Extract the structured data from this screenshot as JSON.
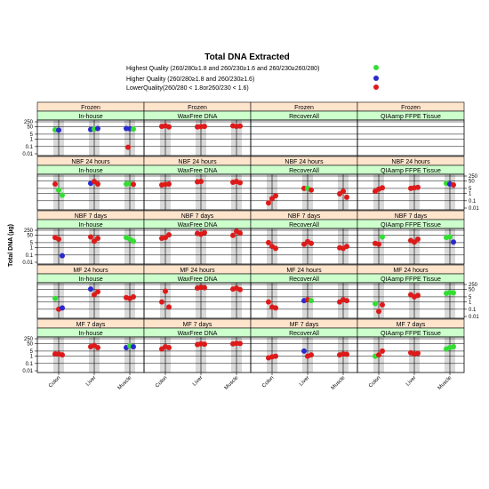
{
  "chart_data": {
    "type": "scatter",
    "title": "Total DNA Extracted",
    "ylabel": "Total DNA (µg)",
    "y_scale": "log",
    "ylim": [
      0.01,
      250
    ],
    "y_ticks": [
      "250",
      "50",
      "5",
      "1",
      "0.1",
      "0.01"
    ],
    "categories": [
      "Colon",
      "Liver",
      "Muscle"
    ],
    "conditions": [
      "Frozen",
      "NBF 24 hours",
      "NBF 7 days",
      "MF 24 hours",
      "MF 7 days"
    ],
    "methods": [
      "In-house",
      "WaxFree DNA",
      "RecoverAll",
      "QIAamp FFPE Tissue"
    ],
    "legend": [
      {
        "label": "Highest Quality (260/280≥1.8 and 260/230≥1.6 and 260/230≥260/280)",
        "color": "#33dd33"
      },
      {
        "label": "Higher Quality (260/280≥1.8 and 260/230≥1.6)",
        "color": "#2a2acc"
      },
      {
        "label": "LowerQuality(260/280   < 1.8or260/230   < 1.6)",
        "color": "#dd1a1a"
      }
    ],
    "colors": {
      "highest": "#33dd33",
      "higher": "#2a2acc",
      "lower": "#dd1a1a",
      "strip_row": "#ffe4cc",
      "strip_col": "#ccffcc",
      "band": "#d9d9d9"
    },
    "panels": [
      {
        "row": 0,
        "col": 0,
        "points": [
          [
            0,
            20,
            "highest"
          ],
          [
            0,
            18,
            "higher"
          ],
          [
            1,
            22,
            "higher"
          ],
          [
            1,
            25,
            "highest"
          ],
          [
            1,
            30,
            "higher"
          ],
          [
            2,
            30,
            "higher"
          ],
          [
            2,
            28,
            "higher"
          ],
          [
            2,
            25,
            "highest"
          ],
          [
            2,
            0.08,
            "lower"
          ]
        ]
      },
      {
        "row": 0,
        "col": 1,
        "points": [
          [
            0,
            60,
            "lower"
          ],
          [
            0,
            70,
            "lower"
          ],
          [
            0,
            50,
            "lower"
          ],
          [
            1,
            50,
            "lower"
          ],
          [
            1,
            55,
            "lower"
          ],
          [
            1,
            60,
            "lower"
          ],
          [
            2,
            70,
            "lower"
          ],
          [
            2,
            60,
            "lower"
          ],
          [
            2,
            65,
            "lower"
          ]
        ]
      },
      {
        "row": 0,
        "col": 2,
        "points": []
      },
      {
        "row": 0,
        "col": 3,
        "points": []
      },
      {
        "row": 1,
        "col": 0,
        "points": [
          [
            0,
            20,
            "lower"
          ],
          [
            0,
            3,
            "highest"
          ],
          [
            0,
            0.6,
            "highest"
          ],
          [
            1,
            25,
            "higher"
          ],
          [
            1,
            45,
            "lower"
          ],
          [
            1,
            20,
            "lower"
          ],
          [
            2,
            20,
            "highest"
          ],
          [
            2,
            22,
            "highest"
          ],
          [
            2,
            18,
            "lower"
          ]
        ]
      },
      {
        "row": 1,
        "col": 1,
        "points": [
          [
            0,
            15,
            "lower"
          ],
          [
            0,
            18,
            "lower"
          ],
          [
            0,
            20,
            "lower"
          ],
          [
            1,
            40,
            "lower"
          ],
          [
            1,
            45,
            "lower"
          ],
          [
            2,
            35,
            "lower"
          ],
          [
            2,
            45,
            "lower"
          ],
          [
            2,
            30,
            "lower"
          ]
        ]
      },
      {
        "row": 1,
        "col": 2,
        "points": [
          [
            0,
            0.05,
            "lower"
          ],
          [
            0,
            0.2,
            "lower"
          ],
          [
            0,
            0.5,
            "lower"
          ],
          [
            1,
            5,
            "lower"
          ],
          [
            1,
            5,
            "highest"
          ],
          [
            1,
            3,
            "lower"
          ],
          [
            2,
            0.9,
            "lower"
          ],
          [
            2,
            2,
            "lower"
          ],
          [
            2,
            0.3,
            "lower"
          ]
        ]
      },
      {
        "row": 1,
        "col": 3,
        "points": [
          [
            0,
            2,
            "lower"
          ],
          [
            0,
            4,
            "lower"
          ],
          [
            0,
            6,
            "lower"
          ],
          [
            1,
            5,
            "lower"
          ],
          [
            1,
            6,
            "lower"
          ],
          [
            1,
            7,
            "lower"
          ],
          [
            2,
            25,
            "highest"
          ],
          [
            2,
            20,
            "higher"
          ],
          [
            2,
            15,
            "lower"
          ]
        ]
      },
      {
        "row": 2,
        "col": 0,
        "points": [
          [
            0,
            25,
            "lower"
          ],
          [
            0,
            15,
            "lower"
          ],
          [
            0,
            0.08,
            "higher"
          ],
          [
            1,
            30,
            "lower"
          ],
          [
            1,
            8,
            "lower"
          ],
          [
            1,
            20,
            "lower"
          ],
          [
            2,
            25,
            "highest"
          ],
          [
            2,
            15,
            "highest"
          ],
          [
            2,
            8,
            "highest"
          ]
        ]
      },
      {
        "row": 2,
        "col": 1,
        "points": [
          [
            0,
            20,
            "lower"
          ],
          [
            0,
            25,
            "lower"
          ],
          [
            0,
            60,
            "lower"
          ],
          [
            1,
            90,
            "lower"
          ],
          [
            1,
            70,
            "lower"
          ],
          [
            1,
            120,
            "lower"
          ],
          [
            2,
            50,
            "lower"
          ],
          [
            2,
            180,
            "lower"
          ],
          [
            2,
            100,
            "lower"
          ]
        ]
      },
      {
        "row": 2,
        "col": 2,
        "points": [
          [
            0,
            5,
            "lower"
          ],
          [
            0,
            1.5,
            "lower"
          ],
          [
            0,
            0.8,
            "lower"
          ],
          [
            1,
            3,
            "lower"
          ],
          [
            1,
            7,
            "lower"
          ],
          [
            1,
            4,
            "lower"
          ],
          [
            2,
            1,
            "lower"
          ],
          [
            2,
            0.8,
            "lower"
          ],
          [
            2,
            1.5,
            "lower"
          ]
        ]
      },
      {
        "row": 2,
        "col": 3,
        "points": [
          [
            0,
            4,
            "lower"
          ],
          [
            0,
            3,
            "lower"
          ],
          [
            0,
            30,
            "highest"
          ],
          [
            1,
            10,
            "lower"
          ],
          [
            1,
            6,
            "lower"
          ],
          [
            1,
            15,
            "lower"
          ],
          [
            2,
            25,
            "highest"
          ],
          [
            2,
            30,
            "highest"
          ],
          [
            2,
            6,
            "higher"
          ]
        ]
      },
      {
        "row": 3,
        "col": 0,
        "points": [
          [
            0,
            3,
            "highest"
          ],
          [
            0,
            0.1,
            "lower"
          ],
          [
            0,
            0.15,
            "higher"
          ],
          [
            1,
            60,
            "higher"
          ],
          [
            1,
            10,
            "lower"
          ],
          [
            1,
            25,
            "lower"
          ],
          [
            2,
            4,
            "lower"
          ],
          [
            2,
            3,
            "lower"
          ],
          [
            2,
            5,
            "lower"
          ]
        ]
      },
      {
        "row": 3,
        "col": 1,
        "points": [
          [
            0,
            1,
            "lower"
          ],
          [
            0,
            30,
            "lower"
          ],
          [
            0,
            0.2,
            "lower"
          ],
          [
            1,
            80,
            "lower"
          ],
          [
            1,
            100,
            "lower"
          ],
          [
            1,
            90,
            "lower"
          ],
          [
            2,
            60,
            "lower"
          ],
          [
            2,
            80,
            "lower"
          ],
          [
            2,
            50,
            "lower"
          ]
        ]
      },
      {
        "row": 3,
        "col": 2,
        "points": [
          [
            0,
            1,
            "lower"
          ],
          [
            0,
            0.2,
            "lower"
          ],
          [
            0,
            0.15,
            "lower"
          ],
          [
            1,
            1.5,
            "higher"
          ],
          [
            1,
            2,
            "lower"
          ],
          [
            1,
            1.5,
            "highest"
          ],
          [
            2,
            1,
            "lower"
          ],
          [
            2,
            2,
            "lower"
          ],
          [
            2,
            1.5,
            "lower"
          ]
        ]
      },
      {
        "row": 3,
        "col": 3,
        "points": [
          [
            0,
            0.6,
            "highest"
          ],
          [
            0,
            0.05,
            "lower"
          ],
          [
            0,
            0.4,
            "lower"
          ],
          [
            1,
            10,
            "lower"
          ],
          [
            1,
            5,
            "lower"
          ],
          [
            1,
            8,
            "lower"
          ],
          [
            2,
            15,
            "highest"
          ],
          [
            2,
            20,
            "highest"
          ],
          [
            2,
            18,
            "highest"
          ]
        ]
      },
      {
        "row": 4,
        "col": 0,
        "points": [
          [
            0,
            2,
            "lower"
          ],
          [
            0,
            2,
            "lower"
          ],
          [
            0,
            1.5,
            "lower"
          ],
          [
            1,
            20,
            "lower"
          ],
          [
            1,
            30,
            "lower"
          ],
          [
            1,
            15,
            "lower"
          ],
          [
            2,
            15,
            "higher"
          ],
          [
            2,
            25,
            "highest"
          ],
          [
            2,
            20,
            "higher"
          ]
        ]
      },
      {
        "row": 4,
        "col": 1,
        "points": [
          [
            0,
            10,
            "lower"
          ],
          [
            0,
            20,
            "lower"
          ],
          [
            0,
            15,
            "lower"
          ],
          [
            1,
            40,
            "lower"
          ],
          [
            1,
            50,
            "lower"
          ],
          [
            1,
            45,
            "lower"
          ],
          [
            2,
            50,
            "lower"
          ],
          [
            2,
            60,
            "lower"
          ],
          [
            2,
            55,
            "lower"
          ]
        ]
      },
      {
        "row": 4,
        "col": 2,
        "points": [
          [
            0,
            0.6,
            "lower"
          ],
          [
            0,
            0.8,
            "lower"
          ],
          [
            0,
            1,
            "lower"
          ],
          [
            1,
            5,
            "higher"
          ],
          [
            1,
            1,
            "lower"
          ],
          [
            1,
            1.5,
            "lower"
          ],
          [
            2,
            1.5,
            "lower"
          ],
          [
            2,
            2,
            "lower"
          ],
          [
            2,
            1.8,
            "lower"
          ]
        ]
      },
      {
        "row": 4,
        "col": 3,
        "points": [
          [
            0,
            1,
            "highest"
          ],
          [
            0,
            1.5,
            "lower"
          ],
          [
            0,
            5,
            "lower"
          ],
          [
            1,
            3,
            "lower"
          ],
          [
            1,
            2,
            "lower"
          ],
          [
            1,
            2.5,
            "lower"
          ],
          [
            2,
            10,
            "highest"
          ],
          [
            2,
            15,
            "highest"
          ],
          [
            2,
            20,
            "highest"
          ]
        ]
      }
    ]
  }
}
